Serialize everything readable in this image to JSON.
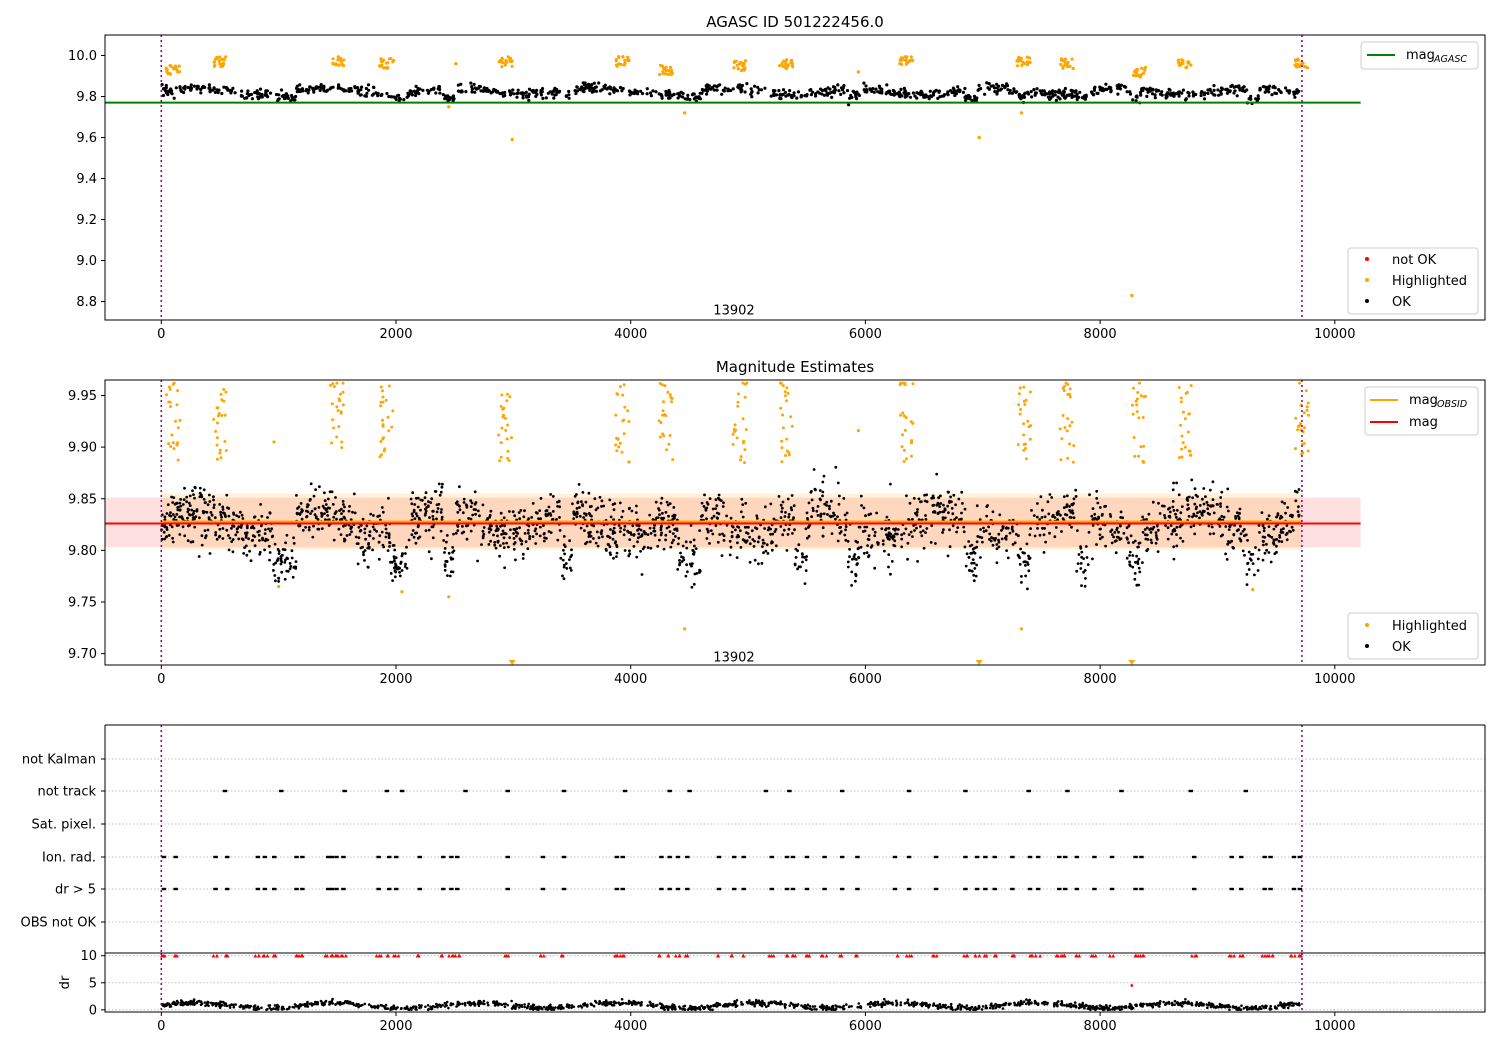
{
  "chart_data": [
    {
      "type": "scatter",
      "title": "AGASC ID 501222456.0",
      "xlim": [
        -480,
        11280
      ],
      "ylim": [
        8.71,
        10.1
      ],
      "xticks": [
        0,
        2000,
        4000,
        6000,
        8000,
        10000
      ],
      "yticks": [
        8.8,
        9.0,
        9.2,
        9.4,
        9.6,
        9.8,
        10.0
      ],
      "ytick_labels": [
        "8.8",
        "9.0",
        "9.2",
        "9.4",
        "9.6",
        "9.8",
        "10.0"
      ],
      "annotation": {
        "text": "13902",
        "x": 4880,
        "y": 8.76
      },
      "vlines": [
        0,
        9720
      ],
      "line": {
        "name": "mag",
        "subscript": "AGASC",
        "y": 9.77,
        "x": [
          -480,
          10220
        ],
        "color": "#008000"
      },
      "legend_lines": [
        {
          "name": "mag",
          "subscript": "AGASC",
          "color": "#008000"
        }
      ],
      "legend_points": [
        {
          "name": "not OK",
          "color": "#ff0000"
        },
        {
          "name": "Highlighted",
          "color": "#ffa500"
        },
        {
          "name": "OK",
          "color": "#000000"
        }
      ],
      "legend_position": "top-right / lower-right",
      "series": {
        "ok_band": {
          "name": "OK",
          "x_range": [
            0,
            9700
          ],
          "y_center": 9.825,
          "y_spread": 0.025
        },
        "dips": [
          {
            "x": [
              950,
              1150
            ],
            "y": 9.795
          },
          {
            "x": [
              1950,
              2100
            ],
            "y": 9.795
          },
          {
            "x": [
              2400,
              2500
            ],
            "y": 9.79
          },
          {
            "x": [
              3400,
              3500
            ],
            "y": 9.8
          },
          {
            "x": [
              4400,
              4600
            ],
            "y": 9.8
          },
          {
            "x": [
              5400,
              5500
            ],
            "y": 9.8
          },
          {
            "x": [
              5850,
              5950
            ],
            "y": 9.795
          },
          {
            "x": [
              6850,
              6950
            ],
            "y": 9.795
          },
          {
            "x": [
              7300,
              7400
            ],
            "y": 9.8
          },
          {
            "x": [
              7800,
              7900
            ],
            "y": 9.8
          },
          {
            "x": [
              8250,
              8350
            ],
            "y": 9.79
          },
          {
            "x": [
              9250,
              9350
            ],
            "y": 9.79
          }
        ],
        "highlighted_clusters": [
          {
            "x": 100,
            "y": 9.92
          },
          {
            "x": 500,
            "y": 9.96
          },
          {
            "x": 1500,
            "y": 9.96
          },
          {
            "x": 1920,
            "y": 9.95
          },
          {
            "x": 2930,
            "y": 9.96
          },
          {
            "x": 3930,
            "y": 9.96
          },
          {
            "x": 4300,
            "y": 9.92
          },
          {
            "x": 4930,
            "y": 9.94
          },
          {
            "x": 5320,
            "y": 9.95
          },
          {
            "x": 6350,
            "y": 9.96
          },
          {
            "x": 7350,
            "y": 9.96
          },
          {
            "x": 7720,
            "y": 9.95
          },
          {
            "x": 8330,
            "y": 9.91
          },
          {
            "x": 8720,
            "y": 9.95
          },
          {
            "x": 9720,
            "y": 9.95
          }
        ],
        "highlighted_outliers": [
          {
            "x": 2990,
            "y": 9.59
          },
          {
            "x": 6970,
            "y": 9.6
          },
          {
            "x": 8270,
            "y": 8.83
          },
          {
            "x": 4460,
            "y": 9.72
          },
          {
            "x": 7330,
            "y": 9.72
          },
          {
            "x": 2450,
            "y": 9.75
          },
          {
            "x": 2510,
            "y": 9.96
          },
          {
            "x": 5940,
            "y": 9.92
          }
        ]
      }
    },
    {
      "type": "scatter",
      "title": "Magnitude Estimates",
      "xlim": [
        -480,
        11280
      ],
      "ylim": [
        9.689,
        9.965
      ],
      "xticks": [
        0,
        2000,
        4000,
        6000,
        8000,
        10000
      ],
      "yticks": [
        9.7,
        9.75,
        9.8,
        9.85,
        9.9,
        9.95
      ],
      "ytick_labels": [
        "9.70",
        "9.75",
        "9.80",
        "9.85",
        "9.90",
        "9.95"
      ],
      "annotation": {
        "text": "13902",
        "x": 4880,
        "y": 9.697
      },
      "vlines": [
        0,
        9720
      ],
      "mag_line": {
        "name": "mag",
        "y": 9.826,
        "x": [
          -480,
          10220
        ],
        "color": "#ff0000",
        "band": [
          9.803,
          9.851
        ]
      },
      "mag_obsid_line": {
        "name": "mag",
        "subscript": "OBSID",
        "y": 9.828,
        "x": [
          0,
          9720
        ],
        "color": "#ffa500",
        "band": [
          9.801,
          9.855
        ]
      },
      "legend_lines": [
        {
          "name": "mag",
          "subscript": "OBSID",
          "color": "#ffa500"
        },
        {
          "name": "mag",
          "subscript": "",
          "color": "#ff0000"
        }
      ],
      "legend_points": [
        {
          "name": "Highlighted",
          "color": "#ffa500"
        },
        {
          "name": "OK",
          "color": "#000000"
        }
      ],
      "series": {
        "ok_band": {
          "name": "OK",
          "x_range": [
            0,
            9700
          ],
          "y_center": 9.826,
          "y_spread": 0.02
        },
        "clipped_markers": [
          {
            "x": 2990,
            "y": 9.69
          },
          {
            "x": 6970,
            "y": 9.69
          },
          {
            "x": 8270,
            "y": 9.69
          }
        ]
      }
    },
    {
      "type": "scatter",
      "title": "",
      "xlim": [
        -480,
        11280
      ],
      "category_rows": [
        "not Kalman",
        "not track",
        "Sat. pixel.",
        "Ion. rad.",
        "dr > 5",
        "OBS not OK"
      ],
      "vlines": [
        0,
        9720
      ],
      "flags": {
        "not track": [
          540,
          1020,
          1560,
          1920,
          2050,
          2590,
          2950,
          3430,
          3950,
          4330,
          4500,
          5150,
          5350,
          5800,
          6370,
          6850,
          7390,
          7720,
          8180,
          8770,
          9240
        ],
        "Ion. rad.": [
          20,
          120,
          460,
          560,
          820,
          880,
          960,
          1150,
          1200,
          1420,
          1450,
          1490,
          1550,
          1850,
          1940,
          2000,
          2200,
          2400,
          2470,
          2520,
          2950,
          3250,
          3430,
          3880,
          3930,
          4260,
          4330,
          4400,
          4480,
          4750,
          4880,
          4960,
          5200,
          5330,
          5380,
          5500,
          5650,
          5800,
          5930,
          6250,
          6370,
          6600,
          6850,
          6950,
          7020,
          7100,
          7250,
          7400,
          7470,
          7650,
          7700,
          7800,
          7950,
          8100,
          8300,
          8350,
          8800,
          9120,
          9200,
          9400,
          9450,
          9650,
          9700
        ],
        "dr > 5": [
          20,
          120,
          460,
          560,
          820,
          880,
          960,
          1150,
          1200,
          1420,
          1450,
          1490,
          1550,
          1850,
          1940,
          2000,
          2200,
          2400,
          2470,
          2520,
          2950,
          3250,
          3430,
          3880,
          3930,
          4260,
          4330,
          4400,
          4480,
          4750,
          4880,
          4960,
          5200,
          5330,
          5380,
          5500,
          5650,
          5800,
          5930,
          6250,
          6370,
          6600,
          6850,
          6950,
          7020,
          7100,
          7250,
          7400,
          7470,
          7650,
          7700,
          7800,
          7950,
          8100,
          8300,
          8350,
          8800,
          9120,
          9200,
          9400,
          9450,
          9650,
          9700
        ]
      }
    },
    {
      "type": "scatter",
      "title": "",
      "ylabel": "dr",
      "xlim": [
        -480,
        11280
      ],
      "ylim": [
        -0.4,
        10.5
      ],
      "xticks": [
        0,
        2000,
        4000,
        6000,
        8000,
        10000
      ],
      "yticks": [
        0,
        5,
        10
      ],
      "ytick_labels": [
        "0",
        "5",
        "10"
      ],
      "vlines": [
        0,
        9720
      ],
      "series": {
        "ok": {
          "name": "OK",
          "x_range": [
            0,
            9700
          ],
          "y_center": 0.8,
          "y_spread": 0.5
        },
        "capped_at_10": {
          "color": "#ff0000",
          "y": 10
        },
        "outlier": {
          "x": 8270,
          "y": 4.5,
          "color": "#ff0000"
        }
      }
    }
  ]
}
